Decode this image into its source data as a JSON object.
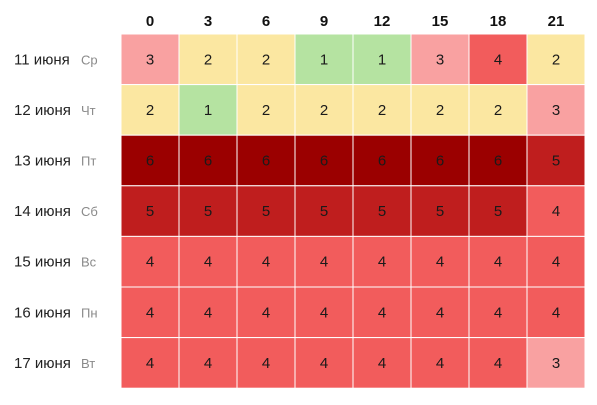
{
  "chart_data": {
    "type": "heatmap",
    "title": "",
    "xlabel": "",
    "ylabel": "",
    "columns": [
      "0",
      "3",
      "6",
      "9",
      "12",
      "15",
      "18",
      "21"
    ],
    "rows": [
      {
        "date": "11 июня",
        "weekday": "Ср",
        "values": [
          3,
          2,
          2,
          1,
          1,
          3,
          4,
          2
        ]
      },
      {
        "date": "12 июня",
        "weekday": "Чт",
        "values": [
          2,
          1,
          2,
          2,
          2,
          2,
          2,
          3
        ]
      },
      {
        "date": "13 июня",
        "weekday": "Пт",
        "values": [
          6,
          6,
          6,
          6,
          6,
          6,
          6,
          5
        ]
      },
      {
        "date": "14 июня",
        "weekday": "Сб",
        "values": [
          5,
          5,
          5,
          5,
          5,
          5,
          5,
          4
        ]
      },
      {
        "date": "15 июня",
        "weekday": "Вс",
        "values": [
          4,
          4,
          4,
          4,
          4,
          4,
          4,
          4
        ]
      },
      {
        "date": "16 июня",
        "weekday": "Пн",
        "values": [
          4,
          4,
          4,
          4,
          4,
          4,
          4,
          4
        ]
      },
      {
        "date": "17 июня",
        "weekday": "Вт",
        "values": [
          4,
          4,
          4,
          4,
          4,
          4,
          4,
          3
        ]
      }
    ],
    "color_scale": {
      "1": "#b5e3a1",
      "2": "#fbe7a1",
      "3": "#f9a1a1",
      "4": "#f25c5c",
      "5": "#bf1e1e",
      "6": "#9b0000"
    },
    "grid": true,
    "legend": "none"
  }
}
